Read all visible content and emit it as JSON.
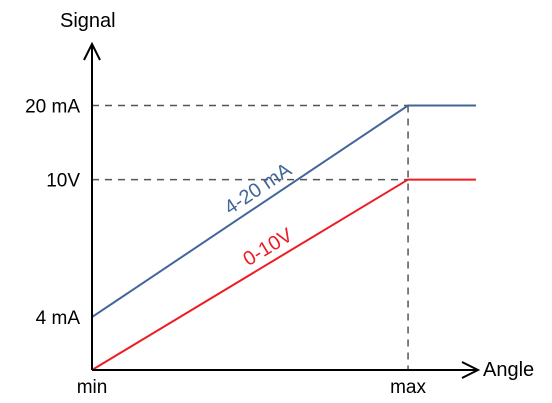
{
  "chart_data": {
    "type": "line",
    "title": "",
    "xlabel": "Angle",
    "ylabel": "Signal",
    "x_ticks": [
      {
        "label": "min",
        "x": 0
      },
      {
        "label": "max",
        "x": 1
      }
    ],
    "y_ticks": [
      {
        "label": "4 mA",
        "y": 4
      },
      {
        "label": "10V",
        "y": 14.4
      },
      {
        "label": "20 mA",
        "y": 20
      }
    ],
    "xlim": [
      0,
      1.215
    ],
    "ylim": [
      0,
      24.5
    ],
    "grid": false,
    "colors": {
      "axis": "#000000",
      "guide": "#555555"
    },
    "series": [
      {
        "name": "4-20 mA",
        "color": "#41679A",
        "points": [
          [
            0,
            4
          ],
          [
            1,
            20
          ],
          [
            1.215,
            20
          ]
        ]
      },
      {
        "name": "0-10V",
        "color": "#EE1C24",
        "points": [
          [
            0,
            0
          ],
          [
            1,
            14.4
          ],
          [
            1.215,
            14.4
          ]
        ]
      }
    ]
  }
}
